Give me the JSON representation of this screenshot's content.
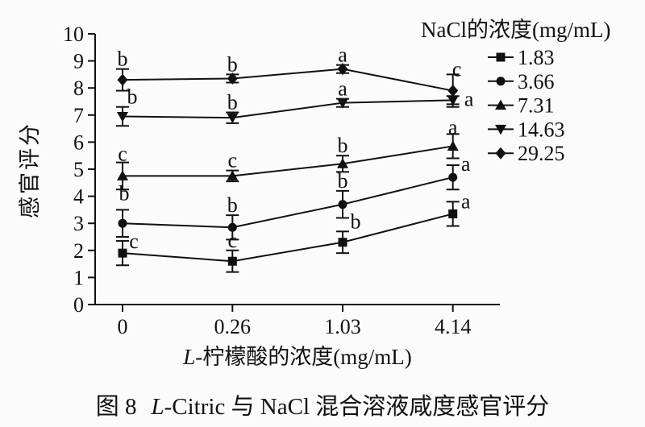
{
  "figure": {
    "caption": {
      "prefix": "图 8",
      "italic": "L",
      "rest": "-Citric 与 NaCl 混合溶液咸度感官评分"
    }
  },
  "chart_data": {
    "type": "line",
    "title": "",
    "xlabel": {
      "italic": "L",
      "rest": "-柠檬酸的浓度(mg/mL)"
    },
    "ylabel": "感官评分",
    "legend_title": "NaCl的浓度(mg/mL)",
    "legend_position": "top-right",
    "grid": false,
    "error_bars": true,
    "categories": [
      "0",
      "0.26",
      "1.03",
      "4.14"
    ],
    "ylim": [
      0,
      10
    ],
    "yticks": [
      "0",
      "1",
      "2",
      "3",
      "4",
      "5",
      "6",
      "7",
      "8",
      "9",
      "10"
    ],
    "series": [
      {
        "name": "1.83",
        "marker": "square",
        "values": [
          1.9,
          1.6,
          2.3,
          3.35
        ],
        "errors": [
          0.45,
          0.4,
          0.4,
          0.45
        ],
        "letters": [
          "c",
          "c",
          "b",
          "a"
        ],
        "letter_offsets": [
          [
            14,
            13
          ],
          [
            0,
            0
          ],
          [
            16,
            0
          ],
          [
            16,
            12
          ]
        ]
      },
      {
        "name": "3.66",
        "marker": "circle",
        "values": [
          3.0,
          2.85,
          3.7,
          4.7
        ],
        "errors": [
          0.5,
          0.45,
          0.5,
          0.45
        ],
        "letters": [
          "b",
          "b",
          "b",
          "a"
        ],
        "letter_offsets": [
          [
            2,
            -8
          ],
          [
            0,
            0
          ],
          [
            0,
            0
          ],
          [
            16,
            11
          ]
        ]
      },
      {
        "name": "7.31",
        "marker": "triangle-up",
        "values": [
          4.75,
          4.75,
          5.2,
          5.85
        ],
        "errors": [
          0.5,
          0.2,
          0.3,
          0.45
        ],
        "letters": [
          "c",
          "c",
          "b",
          "a"
        ],
        "letter_offsets": [
          [
            0,
            2
          ],
          [
            0,
            0
          ],
          [
            0,
            0
          ],
          [
            0,
            4
          ]
        ]
      },
      {
        "name": "14.63",
        "marker": "triangle-down",
        "values": [
          6.95,
          6.9,
          7.45,
          7.55
        ],
        "errors": [
          0.35,
          0.2,
          0.15,
          0.15
        ],
        "letters": [
          "b",
          "b",
          "a",
          "a"
        ],
        "letter_offsets": [
          [
            12,
            0
          ],
          [
            0,
            0
          ],
          [
            0,
            0
          ],
          [
            20,
            16
          ]
        ]
      },
      {
        "name": "29.25",
        "marker": "diamond",
        "values": [
          8.3,
          8.35,
          8.7,
          7.9
        ],
        "errors": [
          0.4,
          0.15,
          0.15,
          0.6
        ],
        "letters": [
          "b",
          "b",
          "a",
          "c"
        ],
        "letter_offsets": [
          [
            0,
            0
          ],
          [
            0,
            0
          ],
          [
            0,
            0
          ],
          [
            5,
            6
          ]
        ]
      }
    ]
  }
}
